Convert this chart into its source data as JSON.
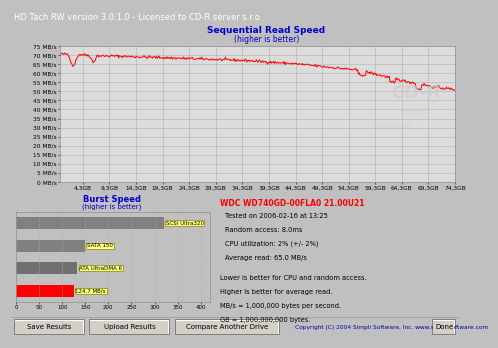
{
  "title_bar": "HD Tach RW version 3.0.1.0 - Licensed to CD-R server s.r.o.",
  "title_bar_bg": "#000080",
  "title_bar_color": "#ffffff",
  "bg_color": "#c0c0c0",
  "plot_bg": "#d4d0c8",
  "seq_title": "Sequential Read Speed",
  "seq_subtitle": "(higher is better)",
  "seq_title_color": "#0000cc",
  "seq_ylim": [
    0,
    75
  ],
  "seq_yticks": [
    0,
    5,
    10,
    15,
    20,
    25,
    30,
    35,
    40,
    45,
    50,
    55,
    60,
    65,
    70,
    75
  ],
  "seq_ytick_labels": [
    "0 MB/s",
    "5 MB/s",
    "10 MB/s",
    "15 MB/s",
    "20 MB/s",
    "25 MB/s",
    "30 MB/s",
    "35 MB/s",
    "40 MB/s",
    "45 MB/s",
    "50 MB/s",
    "55 MB/s",
    "60 MB/s",
    "65 MB/s",
    "70 MB/s",
    "75 MB/s"
  ],
  "seq_xticks": [
    4.3,
    9.3,
    14.3,
    19.3,
    24.3,
    29.3,
    34.3,
    39.3,
    44.3,
    49.3,
    54.3,
    59.3,
    64.3,
    69.3,
    74.3
  ],
  "seq_xtick_labels": [
    "4,3GB",
    "9,3GB",
    "14,3GB",
    "19,3GB",
    "24,3GB",
    "29,3GB",
    "34,3GB",
    "39,3GB",
    "44,3GB",
    "49,3GB",
    "54,3GB",
    "59,3GB",
    "64,3GB",
    "69,3GB",
    "74,3GB"
  ],
  "seq_line_color": "#ff0000",
  "seq_grid_color": "#b0b0b0",
  "seq_plot_bg": "#dcdcdc",
  "watermark1": "CD-R",
  "watermark2": "server",
  "watermark3": "www.cdr.cz",
  "burst_title": "Burst Speed",
  "burst_subtitle": "(higher is better)",
  "burst_title_color": "#0000cc",
  "burst_bars": [
    {
      "label": "SCSI Ultra320",
      "value": 320,
      "color": "#808080"
    },
    {
      "label": "SATA 150",
      "value": 150,
      "color": "#808080"
    },
    {
      "label": "ATA UltraDMA 6",
      "value": 133,
      "color": "#707070"
    },
    {
      "label": "124.7 MB/s",
      "value": 124.7,
      "color": "#ff0000"
    }
  ],
  "burst_xlim": [
    0,
    420
  ],
  "burst_xticks": [
    0,
    50,
    100,
    150,
    200,
    250,
    300,
    350,
    400
  ],
  "burst_grid_color": "#b0b0b0",
  "info_title": "WDC WD740GD-00FLA0 21.00U21",
  "info_title_color": "#ff0000",
  "info_lines": [
    "Tested on 2006-02-16 at 13:25",
    "Random access: 8.0ms",
    "CPU utilization: 2% (+/- 2%)",
    "Average read: 65.0 MB/s"
  ],
  "info_lines2": [
    "Lower is better for CPU and random access.",
    "Higher is better for average read.",
    "MB/s = 1,000,000 bytes per second.",
    "GB = 1,000,000,000 bytes."
  ],
  "info_color": "#000000",
  "bottom_buttons": [
    "Save Results",
    "Upload Results",
    "Compare Another Drive"
  ],
  "bottom_copyright": "Copyright (C) 2004 Simpli Software, Inc. www.simplisoftware.com",
  "bottom_done": "Done",
  "separator_color": "#808080"
}
